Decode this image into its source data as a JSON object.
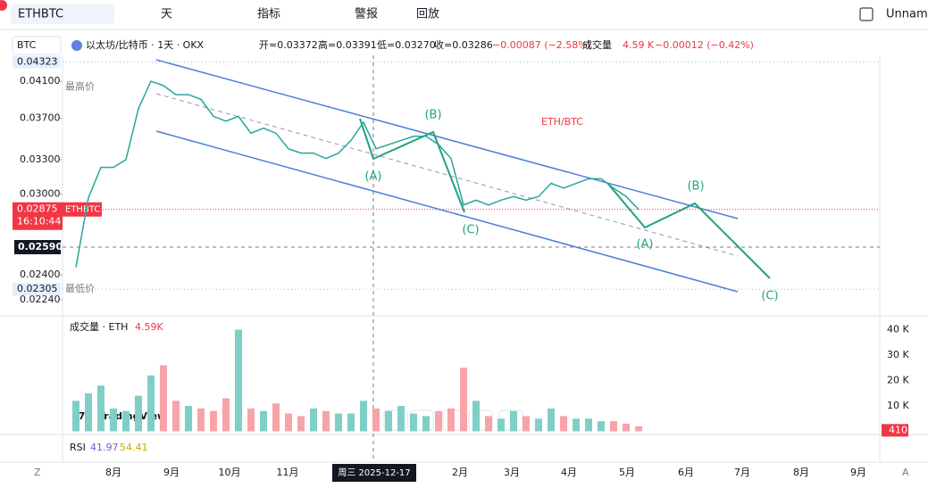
{
  "toolbar": {
    "symbol": "ETHBTC",
    "interval": "天",
    "indicators": "指标",
    "alerts": "警报",
    "replay": "回放",
    "layout": "Unname"
  },
  "legend": {
    "currency": "BTC",
    "title": "以太坊/比特币 · 1天 · OKX",
    "open": "开=0.03372",
    "high": "高=0.03391",
    "low": "低=0.03270",
    "close": "收=0.03286",
    "change": "−0.00087 (−2.58%)",
    "volume_label": "成交量",
    "volume": "4.59 K",
    "volume_change": "−0.00012 (−0.42%)"
  },
  "price_axis": {
    "scale": "log",
    "ticks": [
      {
        "value": 0.041,
        "label": "0.04100"
      },
      {
        "value": 0.037,
        "label": "0.03700"
      },
      {
        "value": 0.033,
        "label": "0.03300"
      },
      {
        "value": 0.03,
        "label": "0.03000"
      },
      {
        "value": 0.024,
        "label": "0.02400"
      },
      {
        "value": 0.0224,
        "label": "0.02240"
      }
    ],
    "last_price": {
      "value": 0.02875,
      "label": "0.02875"
    },
    "symbol_tag": "ETHBTC",
    "countdown": "16:10:44",
    "crosshair_price": {
      "value": 0.0259,
      "label": "0.02590"
    },
    "high": {
      "value": 0.04323,
      "label": "0.04323",
      "name": "最高价"
    },
    "low": {
      "value": 0.02305,
      "label": "0.02305",
      "name": "最低价"
    }
  },
  "price_series": {
    "closes": [
      0.0245,
      0.0297,
      0.0323,
      0.0323,
      0.033,
      0.038,
      0.041,
      0.0405,
      0.0395,
      0.0395,
      0.039,
      0.0372,
      0.0367,
      0.0372,
      0.0355,
      0.036,
      0.0355,
      0.034,
      0.0336,
      0.0336,
      0.0331,
      0.0336,
      0.0348,
      0.0366,
      0.034,
      0.0344,
      0.0348,
      0.0352,
      0.0352,
      0.0344,
      0.0331,
      0.0291,
      0.0295,
      0.0291,
      0.0295,
      0.0298,
      0.0295,
      0.0298,
      0.0309,
      0.0305,
      0.0309,
      0.0313,
      0.0313,
      0.0305,
      0.0298,
      0.02875
    ]
  },
  "annotations": {
    "pair": "ETH/BTC",
    "waves": [
      "(A)",
      "(B)",
      "(C)",
      "(A)",
      "(B)",
      "(C)"
    ]
  },
  "volume_pane": {
    "title": "成交量 · ETH",
    "value": "4.59K",
    "ticks": [
      {
        "value": 40000,
        "label": "40 K"
      },
      {
        "value": 30000,
        "label": "30 K"
      },
      {
        "value": 20000,
        "label": "20 K"
      },
      {
        "value": 10000,
        "label": "10 K"
      }
    ],
    "last": {
      "value": 410,
      "label": "410"
    },
    "values": [
      12000,
      15000,
      18000,
      9000,
      8000,
      14000,
      22000,
      26000,
      12000,
      10000,
      9000,
      8000,
      13000,
      40000,
      9000,
      8000,
      11000,
      7000,
      6000,
      9000,
      8000,
      7000,
      7000,
      12000,
      9000,
      8000,
      10000,
      7000,
      6000,
      8000,
      9000,
      25000,
      12000,
      6000,
      5000,
      8000,
      6000,
      5000,
      9000,
      6000,
      5000,
      5000,
      4000,
      4000,
      3000,
      2000
    ]
  },
  "rsi_pane": {
    "title": "RSI",
    "value1": "41.97",
    "value2": "54.41"
  },
  "logo": "TradingView",
  "time_axis": {
    "labels": [
      "8月",
      "9月",
      "10月",
      "11月",
      "2月",
      "3月",
      "4月",
      "5月",
      "6月",
      "7月",
      "8月",
      "9月"
    ],
    "crosshair": "周三 2025-12-17",
    "left": "Z",
    "right": "A"
  }
}
